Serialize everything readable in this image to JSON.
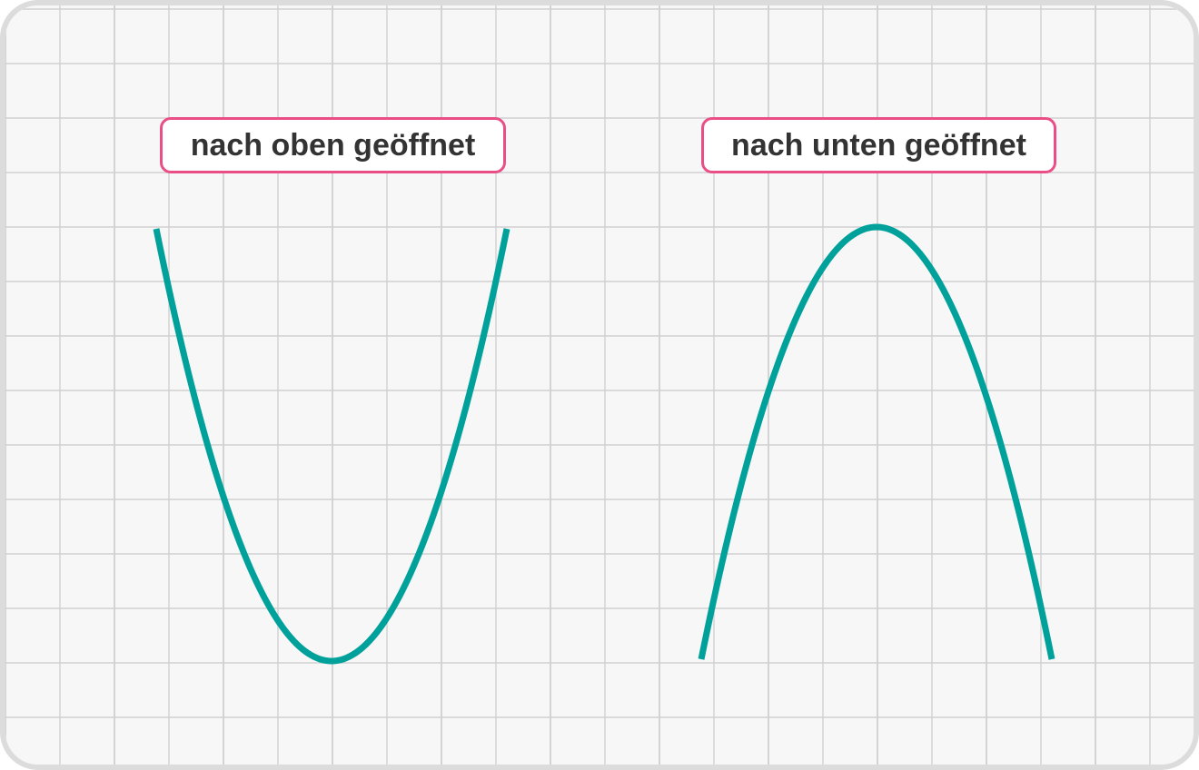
{
  "labels": {
    "left": "nach oben geöffnet",
    "right": "nach unten geöffnet"
  },
  "colors": {
    "curve": "#00a19b",
    "label_border": "#e94f86",
    "grid": "#d0d0d0",
    "background": "#f7f7f7"
  }
}
